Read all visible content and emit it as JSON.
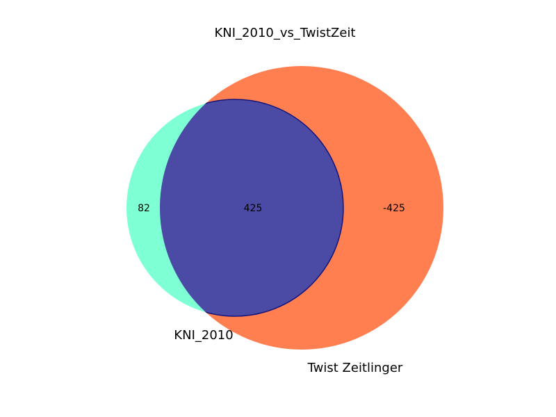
{
  "chart_data": {
    "type": "venn",
    "title": "KNI_2010_vs_TwistZeit",
    "sets": [
      {
        "name": "KNI_2010",
        "color": "#7fffd4"
      },
      {
        "name": "Twist Zeitlinger",
        "color": "#ff7f50"
      }
    ],
    "regions": {
      "only_a": "82",
      "intersection": "425",
      "only_b": "-425"
    },
    "intersection_color": "#4b4ba6"
  }
}
